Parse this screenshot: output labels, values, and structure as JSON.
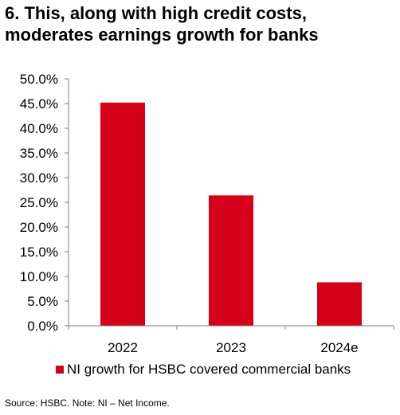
{
  "title_lines": [
    "6. This, along with high credit costs,",
    "moderates earnings growth for banks"
  ],
  "footnote": "Source: HSBC. Note: NI – Net Income.",
  "colors": {
    "bar": "#D50019",
    "axis": "#7F7F7F",
    "text": "#000000"
  },
  "chart_data": {
    "type": "bar",
    "categories": [
      "2022",
      "2023",
      "2024e"
    ],
    "series": [
      {
        "name": "NI growth for HSBC covered commercial banks",
        "values": [
          45.2,
          26.4,
          8.8
        ]
      }
    ],
    "ylim": [
      0,
      50
    ],
    "yticks": [
      0,
      5,
      10,
      15,
      20,
      25,
      30,
      35,
      40,
      45,
      50
    ],
    "ytick_labels": [
      "0.0%",
      "5.0%",
      "10.0%",
      "15.0%",
      "20.0%",
      "25.0%",
      "30.0%",
      "35.0%",
      "40.0%",
      "45.0%",
      "50.0%"
    ],
    "xlabel": "",
    "ylabel": "",
    "grid": false,
    "legend_position": "bottom"
  }
}
